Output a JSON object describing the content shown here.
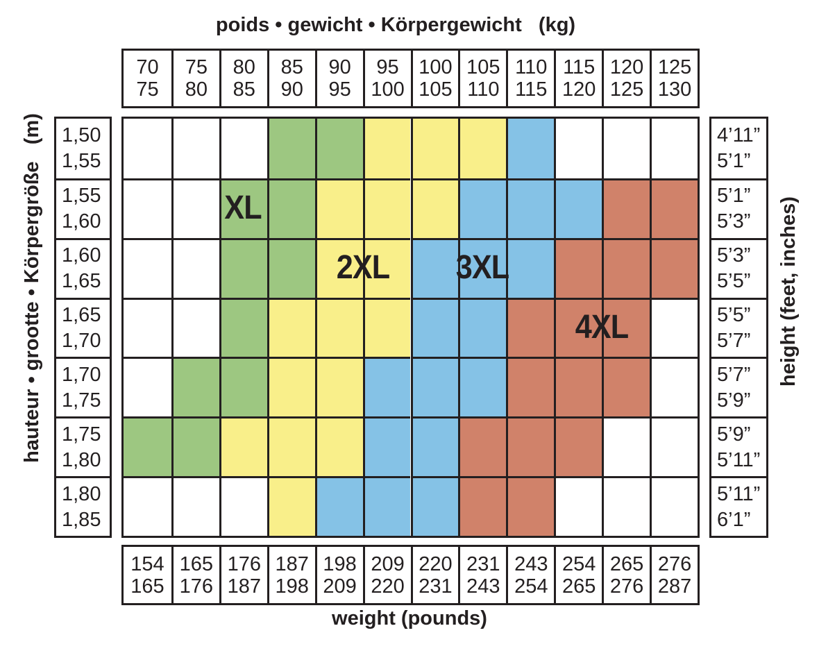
{
  "titles": {
    "top": "poids • gewicht • Körpergewicht   (kg)",
    "bottom": "weight (pounds)",
    "left": "hauteur • grootte • Körpergröße   (m)",
    "right": "height (feet, inches)"
  },
  "colors": {
    "W": "#ffffff",
    "G": "#9dc781",
    "Y": "#f9ef8a",
    "B": "#85c2e6",
    "R": "#d0826a",
    "line": "#231f20"
  },
  "chart_data": {
    "type": "heatmap",
    "kg_ranges": [
      [
        "70",
        "75"
      ],
      [
        "75",
        "80"
      ],
      [
        "80",
        "85"
      ],
      [
        "85",
        "90"
      ],
      [
        "90",
        "95"
      ],
      [
        "95",
        "100"
      ],
      [
        "100",
        "105"
      ],
      [
        "105",
        "110"
      ],
      [
        "110",
        "115"
      ],
      [
        "115",
        "120"
      ],
      [
        "120",
        "125"
      ],
      [
        "125",
        "130"
      ]
    ],
    "lb_ranges": [
      [
        "154",
        "165"
      ],
      [
        "165",
        "176"
      ],
      [
        "176",
        "187"
      ],
      [
        "187",
        "198"
      ],
      [
        "198",
        "209"
      ],
      [
        "209",
        "220"
      ],
      [
        "220",
        "231"
      ],
      [
        "231",
        "243"
      ],
      [
        "243",
        "254"
      ],
      [
        "254",
        "265"
      ],
      [
        "265",
        "276"
      ],
      [
        "276",
        "287"
      ]
    ],
    "m_ranges": [
      [
        "1,50",
        "1,55"
      ],
      [
        "1,55",
        "1,60"
      ],
      [
        "1,60",
        "1,65"
      ],
      [
        "1,65",
        "1,70"
      ],
      [
        "1,70",
        "1,75"
      ],
      [
        "1,75",
        "1,80"
      ],
      [
        "1,80",
        "1,85"
      ]
    ],
    "ft_ranges": [
      [
        "4’11”",
        "5’1”"
      ],
      [
        "5’1”",
        "5’3”"
      ],
      [
        "5’3”",
        "5’5”"
      ],
      [
        "5’5”",
        "5’7”"
      ],
      [
        "5’7”",
        "5’9”"
      ],
      [
        "5’9”",
        "5’11”"
      ],
      [
        "5’11”",
        "6’1”"
      ]
    ],
    "sizes": {
      "G": "XL",
      "Y": "2XL",
      "B": "3XL",
      "R": "4XL"
    },
    "grid": [
      [
        "W",
        "W",
        "W",
        "G",
        "G",
        "Y",
        "Y",
        "Y",
        "B",
        "W",
        "W",
        "W"
      ],
      [
        "W",
        "W",
        "G",
        "G",
        "Y",
        "Y",
        "Y",
        "B",
        "B",
        "B",
        "R",
        "R"
      ],
      [
        "W",
        "W",
        "G",
        "G",
        "Y",
        "Y",
        "B",
        "B",
        "B",
        "R",
        "R",
        "R"
      ],
      [
        "W",
        "W",
        "G",
        "Y",
        "Y",
        "Y",
        "B",
        "B",
        "R",
        "R",
        "R",
        "W"
      ],
      [
        "W",
        "G",
        "G",
        "Y",
        "Y",
        "B",
        "B",
        "B",
        "R",
        "R",
        "R",
        "W"
      ],
      [
        "G",
        "G",
        "Y",
        "Y",
        "Y",
        "B",
        "B",
        "R",
        "R",
        "R",
        "W",
        "W"
      ],
      [
        "W",
        "W",
        "W",
        "Y",
        "B",
        "B",
        "B",
        "R",
        "R",
        "W",
        "W",
        "W"
      ]
    ],
    "labels": [
      {
        "text": "XL",
        "row": 1,
        "col": 2
      },
      {
        "text": "2XL",
        "row": 2,
        "col": 4.5
      },
      {
        "text": "3XL",
        "row": 2,
        "col": 7
      },
      {
        "text": "4XL",
        "row": 3,
        "col": 9.5
      }
    ]
  }
}
